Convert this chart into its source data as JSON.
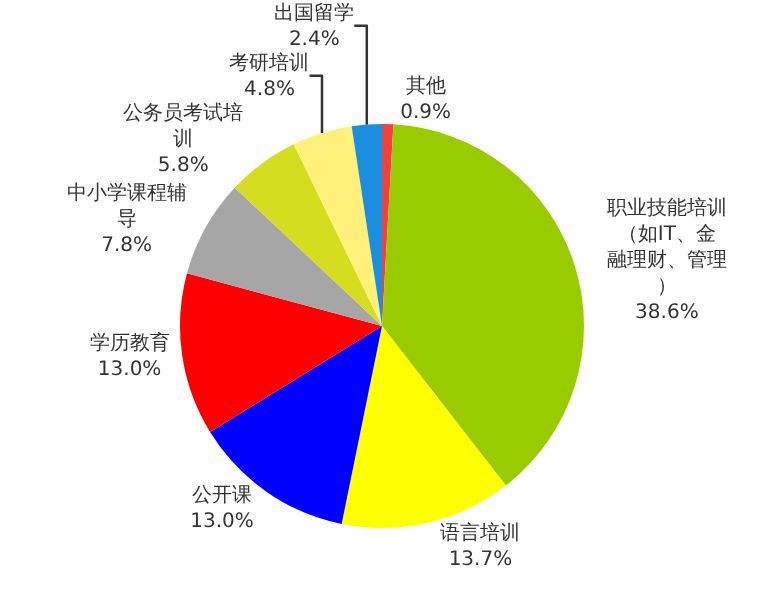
{
  "chart_data": {
    "type": "pie",
    "categories": [
      "其他",
      "职业技能培训（如IT、金融理财、管理）",
      "语言培训",
      "公开课",
      "学历教育",
      "中小学课程辅导",
      "公务员考试培训",
      "考研培训",
      "出国留学"
    ],
    "values": [
      0.9,
      38.6,
      13.7,
      13.0,
      13.0,
      7.8,
      5.8,
      4.8,
      2.4
    ],
    "value_labels": [
      "0.9%",
      "38.6%",
      "13.7%",
      "13.0%",
      "13.0%",
      "7.8%",
      "5.8%",
      "4.8%",
      "2.4%"
    ],
    "colors": [
      "#f04040",
      "#99cc00",
      "#ffff00",
      "#0000ff",
      "#ff0000",
      "#a6a6a6",
      "#d6dc1e",
      "#fff07a",
      "#1a8fe0"
    ],
    "legend": false
  }
}
